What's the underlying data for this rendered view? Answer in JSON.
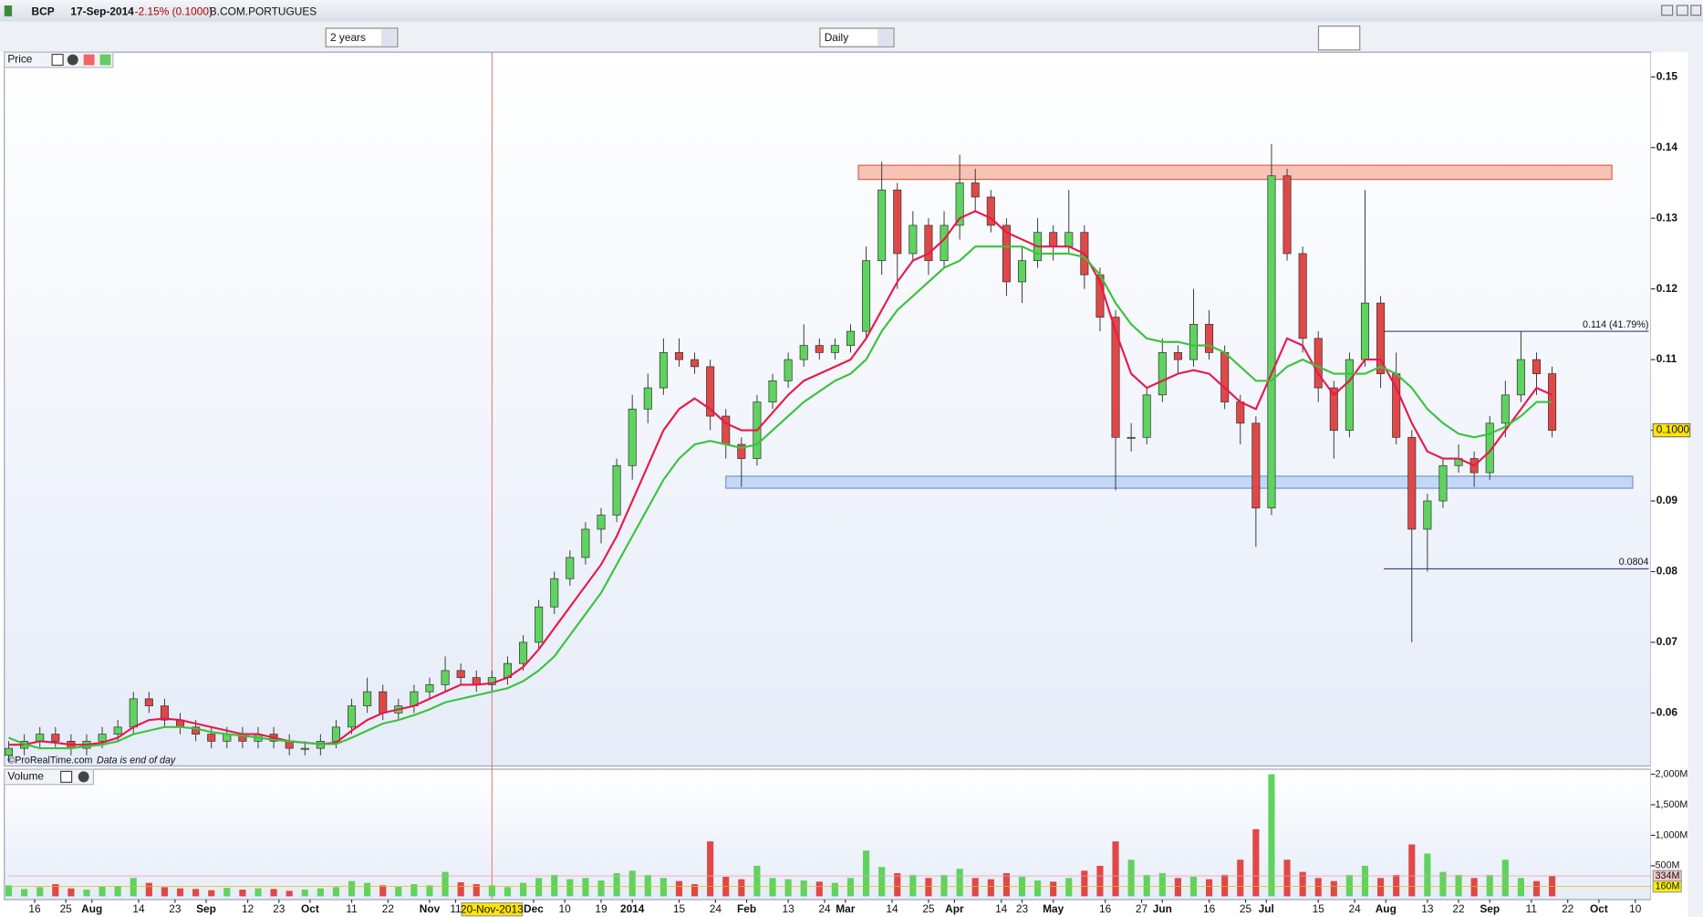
{
  "header": {
    "symbol": "BCP",
    "date": "17-Sep-2014",
    "change": "-2.15% (0.1000)",
    "name": "B.COM.PORTUGUES",
    "period": "2 years",
    "interval": "Daily"
  },
  "chart_data": [
    {
      "type": "candlestick",
      "title": "Price",
      "footnote": "©ProRealTime.com",
      "footnote_note": "Data is end of day",
      "x": [
        0,
        3,
        6,
        9,
        12,
        15,
        18,
        21,
        24,
        27,
        30,
        33,
        36,
        39,
        42,
        45,
        48,
        51,
        54,
        57,
        60,
        63,
        66,
        69,
        72,
        75,
        78,
        81,
        84,
        87,
        90,
        93,
        96,
        99,
        102,
        105,
        108,
        111,
        114,
        117,
        120,
        123,
        126,
        129,
        132,
        135,
        138,
        141,
        144,
        147,
        150,
        153,
        156,
        159,
        162,
        165,
        168,
        171,
        174,
        177,
        180,
        183,
        186,
        189,
        192,
        195,
        198,
        201,
        204,
        207,
        210,
        213,
        216,
        219,
        222,
        225,
        228,
        231,
        234,
        237,
        240,
        243,
        246,
        249,
        252,
        255,
        258,
        261,
        264,
        267,
        270,
        273,
        276,
        279,
        282,
        285,
        288,
        291,
        294,
        297
      ],
      "open": [
        0.054,
        0.055,
        0.056,
        0.057,
        0.056,
        0.055,
        0.056,
        0.057,
        0.058,
        0.062,
        0.061,
        0.059,
        0.058,
        0.057,
        0.056,
        0.057,
        0.056,
        0.057,
        0.056,
        0.055,
        0.055,
        0.056,
        0.058,
        0.061,
        0.063,
        0.06,
        0.061,
        0.063,
        0.064,
        0.066,
        0.065,
        0.064,
        0.065,
        0.067,
        0.07,
        0.075,
        0.079,
        0.082,
        0.086,
        0.088,
        0.095,
        0.103,
        0.106,
        0.111,
        0.11,
        0.109,
        0.102,
        0.098,
        0.096,
        0.104,
        0.107,
        0.11,
        0.112,
        0.111,
        0.112,
        0.114,
        0.124,
        0.134,
        0.125,
        0.129,
        0.124,
        0.129,
        0.135,
        0.133,
        0.129,
        0.121,
        0.124,
        0.128,
        0.126,
        0.128,
        0.122,
        0.116,
        0.099,
        0.099,
        0.105,
        0.111,
        0.11,
        0.115,
        0.111,
        0.104,
        0.101,
        0.089,
        0.136,
        0.125,
        0.113,
        0.106,
        0.1,
        0.11,
        0.118,
        0.108,
        0.099,
        0.086,
        0.09,
        0.095,
        0.096,
        0.094,
        0.101,
        0.105,
        0.11,
        0.108
      ],
      "high": [
        0.056,
        0.057,
        0.058,
        0.058,
        0.057,
        0.057,
        0.058,
        0.059,
        0.063,
        0.063,
        0.062,
        0.06,
        0.059,
        0.058,
        0.058,
        0.058,
        0.058,
        0.058,
        0.057,
        0.056,
        0.057,
        0.059,
        0.062,
        0.065,
        0.064,
        0.062,
        0.064,
        0.065,
        0.068,
        0.067,
        0.066,
        0.066,
        0.068,
        0.071,
        0.076,
        0.08,
        0.083,
        0.087,
        0.089,
        0.096,
        0.105,
        0.108,
        0.113,
        0.113,
        0.111,
        0.11,
        0.103,
        0.099,
        0.105,
        0.108,
        0.111,
        0.115,
        0.113,
        0.113,
        0.115,
        0.126,
        0.138,
        0.135,
        0.131,
        0.13,
        0.131,
        0.139,
        0.137,
        0.134,
        0.13,
        0.126,
        0.13,
        0.129,
        0.134,
        0.129,
        0.123,
        0.117,
        0.101,
        0.106,
        0.113,
        0.112,
        0.12,
        0.117,
        0.112,
        0.105,
        0.102,
        0.1405,
        0.137,
        0.126,
        0.114,
        0.107,
        0.111,
        0.134,
        0.119,
        0.111,
        0.1,
        0.091,
        0.096,
        0.098,
        0.097,
        0.102,
        0.107,
        0.114,
        0.111,
        0.109
      ],
      "low": [
        0.053,
        0.054,
        0.055,
        0.055,
        0.054,
        0.054,
        0.055,
        0.056,
        0.057,
        0.06,
        0.058,
        0.057,
        0.056,
        0.055,
        0.055,
        0.055,
        0.055,
        0.055,
        0.054,
        0.054,
        0.054,
        0.055,
        0.057,
        0.06,
        0.059,
        0.059,
        0.06,
        0.062,
        0.063,
        0.064,
        0.063,
        0.063,
        0.064,
        0.066,
        0.069,
        0.074,
        0.078,
        0.081,
        0.084,
        0.087,
        0.093,
        0.101,
        0.105,
        0.109,
        0.108,
        0.1,
        0.096,
        0.092,
        0.095,
        0.103,
        0.106,
        0.109,
        0.11,
        0.11,
        0.111,
        0.113,
        0.122,
        0.12,
        0.124,
        0.122,
        0.123,
        0.127,
        0.131,
        0.128,
        0.119,
        0.118,
        0.123,
        0.124,
        0.125,
        0.12,
        0.114,
        0.0915,
        0.097,
        0.098,
        0.104,
        0.108,
        0.109,
        0.11,
        0.103,
        0.098,
        0.0835,
        0.088,
        0.124,
        0.111,
        0.104,
        0.096,
        0.099,
        0.109,
        0.106,
        0.098,
        0.07,
        0.08,
        0.089,
        0.094,
        0.092,
        0.093,
        0.099,
        0.104,
        0.105,
        0.099
      ],
      "close": [
        0.055,
        0.056,
        0.057,
        0.056,
        0.055,
        0.056,
        0.057,
        0.058,
        0.062,
        0.061,
        0.059,
        0.058,
        0.057,
        0.056,
        0.057,
        0.056,
        0.057,
        0.056,
        0.055,
        0.055,
        0.056,
        0.058,
        0.061,
        0.063,
        0.06,
        0.061,
        0.063,
        0.064,
        0.066,
        0.065,
        0.064,
        0.065,
        0.067,
        0.07,
        0.075,
        0.079,
        0.082,
        0.086,
        0.088,
        0.095,
        0.103,
        0.106,
        0.111,
        0.11,
        0.109,
        0.102,
        0.098,
        0.096,
        0.104,
        0.107,
        0.11,
        0.112,
        0.111,
        0.112,
        0.114,
        0.124,
        0.134,
        0.125,
        0.129,
        0.124,
        0.129,
        0.135,
        0.133,
        0.129,
        0.121,
        0.124,
        0.128,
        0.126,
        0.128,
        0.122,
        0.116,
        0.099,
        0.099,
        0.105,
        0.111,
        0.11,
        0.115,
        0.111,
        0.104,
        0.101,
        0.089,
        0.136,
        0.125,
        0.113,
        0.106,
        0.1,
        0.11,
        0.118,
        0.108,
        0.099,
        0.086,
        0.09,
        0.095,
        0.096,
        0.094,
        0.101,
        0.105,
        0.11,
        0.108,
        0.1
      ],
      "up_color": "#5fd35f",
      "down_color": "#e04848",
      "lines": [
        {
          "color": "#e8194a",
          "values": [
            0.0555,
            0.0555,
            0.056,
            0.0558,
            0.0555,
            0.0555,
            0.0558,
            0.0565,
            0.058,
            0.059,
            0.0592,
            0.059,
            0.0585,
            0.058,
            0.0575,
            0.057,
            0.057,
            0.0565,
            0.056,
            0.0558,
            0.0556,
            0.0558,
            0.0575,
            0.059,
            0.06,
            0.0605,
            0.061,
            0.062,
            0.063,
            0.064,
            0.064,
            0.0642,
            0.065,
            0.0665,
            0.069,
            0.072,
            0.075,
            0.078,
            0.081,
            0.085,
            0.09,
            0.095,
            0.1,
            0.103,
            0.1045,
            0.103,
            0.101,
            0.1,
            0.1,
            0.1025,
            0.105,
            0.107,
            0.108,
            0.109,
            0.11,
            0.113,
            0.117,
            0.121,
            0.124,
            0.125,
            0.127,
            0.13,
            0.131,
            0.13,
            0.128,
            0.127,
            0.126,
            0.126,
            0.126,
            0.125,
            0.121,
            0.114,
            0.108,
            0.106,
            0.107,
            0.108,
            0.1085,
            0.108,
            0.106,
            0.104,
            0.103,
            0.108,
            0.113,
            0.112,
            0.108,
            0.105,
            0.107,
            0.11,
            0.11,
            0.106,
            0.101,
            0.097,
            0.096,
            0.096,
            0.095,
            0.097,
            0.1,
            0.103,
            0.106,
            0.105
          ]
        },
        {
          "color": "#3cc23c",
          "values": [
            0.0565,
            0.0556,
            0.055,
            0.055,
            0.055,
            0.0553,
            0.0555,
            0.056,
            0.057,
            0.0575,
            0.058,
            0.058,
            0.0578,
            0.0573,
            0.057,
            0.0568,
            0.0565,
            0.0562,
            0.056,
            0.0558,
            0.0556,
            0.0556,
            0.0565,
            0.0575,
            0.0585,
            0.059,
            0.0597,
            0.0605,
            0.0615,
            0.062,
            0.0625,
            0.063,
            0.0635,
            0.0645,
            0.066,
            0.068,
            0.071,
            0.074,
            0.077,
            0.081,
            0.085,
            0.089,
            0.093,
            0.096,
            0.098,
            0.0985,
            0.098,
            0.0975,
            0.098,
            0.1,
            0.102,
            0.104,
            0.1055,
            0.107,
            0.108,
            0.11,
            0.114,
            0.117,
            0.119,
            0.121,
            0.123,
            0.124,
            0.126,
            0.126,
            0.126,
            0.126,
            0.125,
            0.125,
            0.125,
            0.1245,
            0.122,
            0.118,
            0.115,
            0.113,
            0.1125,
            0.1125,
            0.112,
            0.112,
            0.111,
            0.109,
            0.107,
            0.107,
            0.109,
            0.11,
            0.109,
            0.108,
            0.108,
            0.108,
            0.109,
            0.108,
            0.106,
            0.103,
            0.101,
            0.0995,
            0.099,
            0.0995,
            0.1005,
            0.102,
            0.104,
            0.104
          ]
        }
      ],
      "zones": [
        {
          "xlim": [
            163.5,
            308.5
          ],
          "ylim": [
            0.1355,
            0.1375
          ],
          "color": "#f4b8a8",
          "edge": "#e0604a"
        },
        {
          "xlim": [
            138,
            312.5
          ],
          "ylim": [
            0.0918,
            0.0935
          ],
          "color": "#bcd2f4",
          "edge": "#6f95d8"
        }
      ],
      "levels": [
        {
          "value": 0.114,
          "label": "0.114 (41.79%)",
          "x_start": 264.6,
          "color": "#1f2a7a"
        },
        {
          "value": 0.0804,
          "label": "0.0804",
          "x_start": 264.6,
          "color": "#1f2a7a"
        }
      ],
      "cursor": {
        "x": 93,
        "label": "20-Nov-2013"
      },
      "last_price": {
        "value": 0.1,
        "label": "0.1000"
      },
      "xlim": [
        0,
        316
      ],
      "xticks": [
        {
          "value": 5,
          "label": "16"
        },
        {
          "value": 11,
          "label": "25"
        },
        {
          "value": 16,
          "label": "Aug"
        },
        {
          "value": 25,
          "label": "14"
        },
        {
          "value": 32,
          "label": "23"
        },
        {
          "value": 38,
          "label": "Sep"
        },
        {
          "value": 46,
          "label": "12"
        },
        {
          "value": 52,
          "label": "23"
        },
        {
          "value": 58,
          "label": "Oct"
        },
        {
          "value": 66,
          "label": "11"
        },
        {
          "value": 73,
          "label": "22"
        },
        {
          "value": 81,
          "label": "Nov"
        },
        {
          "value": 86,
          "label": "11"
        },
        {
          "value": 101,
          "label": "Dec"
        },
        {
          "value": 107,
          "label": "10"
        },
        {
          "value": 114,
          "label": "19"
        },
        {
          "value": 120,
          "label": "2014"
        },
        {
          "value": 129,
          "label": "15"
        },
        {
          "value": 136,
          "label": "24"
        },
        {
          "value": 142,
          "label": "Feb"
        },
        {
          "value": 150,
          "label": "13"
        },
        {
          "value": 157,
          "label": "24"
        },
        {
          "value": 161,
          "label": "Mar"
        },
        {
          "value": 170,
          "label": "14"
        },
        {
          "value": 177,
          "label": "25"
        },
        {
          "value": 182,
          "label": "Apr"
        },
        {
          "value": 191,
          "label": "14"
        },
        {
          "value": 195,
          "label": "23"
        },
        {
          "value": 201,
          "label": "May"
        },
        {
          "value": 211,
          "label": "16"
        },
        {
          "value": 218,
          "label": "27"
        },
        {
          "value": 222,
          "label": "Jun"
        },
        {
          "value": 231,
          "label": "16"
        },
        {
          "value": 238,
          "label": "25"
        },
        {
          "value": 242,
          "label": "Jul"
        },
        {
          "value": 252,
          "label": "15"
        },
        {
          "value": 259,
          "label": "24"
        },
        {
          "value": 265,
          "label": "Aug"
        },
        {
          "value": 273,
          "label": "13"
        },
        {
          "value": 279,
          "label": "22"
        },
        {
          "value": 285,
          "label": "Sep"
        },
        {
          "value": 293,
          "label": "11"
        },
        {
          "value": 300,
          "label": "22"
        },
        {
          "value": 306,
          "label": "Oct"
        },
        {
          "value": 313,
          "label": "10"
        }
      ],
      "ylim": [
        0.0525,
        0.1535
      ],
      "yticks": [
        0.06,
        0.07,
        0.08,
        0.09,
        {
          "value": 0.1,
          "label": "0.10"
        },
        0.11,
        0.12,
        0.13,
        0.14,
        0.15
      ]
    },
    {
      "type": "bar",
      "title": "Volume",
      "values": [
        180,
        120,
        150,
        200,
        130,
        110,
        160,
        170,
        300,
        220,
        150,
        130,
        120,
        100,
        140,
        110,
        130,
        120,
        90,
        110,
        130,
        150,
        250,
        220,
        180,
        160,
        200,
        180,
        400,
        230,
        200,
        180,
        150,
        220,
        300,
        350,
        280,
        300,
        260,
        380,
        420,
        350,
        300,
        250,
        200,
        900,
        320,
        280,
        500,
        300,
        280,
        260,
        240,
        220,
        300,
        750,
        480,
        380,
        350,
        300,
        350,
        450,
        300,
        280,
        380,
        320,
        260,
        240,
        300,
        420,
        500,
        900,
        600,
        350,
        380,
        300,
        320,
        280,
        350,
        600,
        1100,
        2000,
        600,
        400,
        300,
        250,
        350,
        500,
        300,
        350,
        850,
        700,
        400,
        350,
        300,
        350,
        600,
        300,
        250,
        334
      ],
      "up_color": "#5fd35f",
      "down_color": "#e04848",
      "ylim": [
        0,
        2100
      ],
      "yticks": [
        {
          "value": 500,
          "label": "500M"
        },
        {
          "value": 1000,
          "label": "1,000M"
        },
        {
          "value": 1500,
          "label": "1,500M"
        },
        {
          "value": 2000,
          "label": "2,000M"
        }
      ],
      "last_labels": [
        {
          "value": 334,
          "label": "334M",
          "color": "#f2c6c6"
        },
        {
          "value": 160,
          "label": "160M",
          "color": "#fff200"
        }
      ]
    }
  ]
}
